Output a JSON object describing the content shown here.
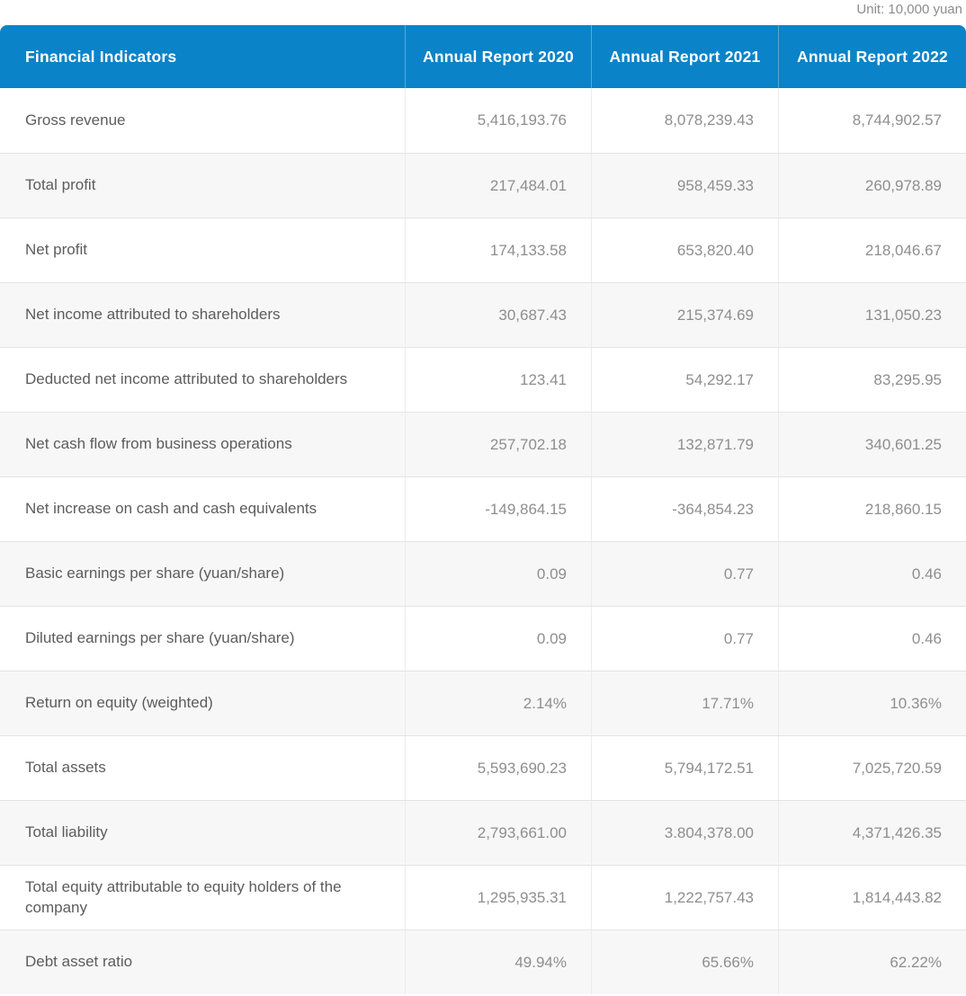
{
  "unit_label": "Unit: 10,000 yuan",
  "colors": {
    "header_bg": "#0a83c8",
    "header_text": "#ffffff",
    "header_divider": "#57a9d9",
    "row_alt_bg": "#f7f7f7",
    "label_text": "#5c5c5c",
    "value_text": "#8e8e8e",
    "unit_text": "#8c8c8c"
  },
  "chart_data": {
    "type": "table",
    "unit": "10,000 yuan",
    "columns": [
      "Financial Indicators",
      "Annual Report 2020",
      "Annual Report 2021",
      "Annual Report 2022"
    ],
    "rows": [
      {
        "label": "Gross revenue",
        "values": [
          "5,416,193.76",
          "8,078,239.43",
          "8,744,902.57"
        ]
      },
      {
        "label": "Total profit",
        "values": [
          "217,484.01",
          "958,459.33",
          "260,978.89"
        ]
      },
      {
        "label": "Net profit",
        "values": [
          "174,133.58",
          "653,820.40",
          "218,046.67"
        ]
      },
      {
        "label": "Net income attributed to shareholders",
        "values": [
          "30,687.43",
          "215,374.69",
          "131,050.23"
        ]
      },
      {
        "label": "Deducted net income attributed to shareholders",
        "values": [
          "123.41",
          "54,292.17",
          "83,295.95"
        ]
      },
      {
        "label": "Net cash flow from business operations",
        "values": [
          "257,702.18",
          "132,871.79",
          "340,601.25"
        ]
      },
      {
        "label": "Net increase on cash and cash equivalents",
        "values": [
          "-149,864.15",
          "-364,854.23",
          "218,860.15"
        ]
      },
      {
        "label": "Basic earnings per share (yuan/share)",
        "values": [
          "0.09",
          "0.77",
          "0.46"
        ]
      },
      {
        "label": "Diluted earnings per share (yuan/share)",
        "values": [
          "0.09",
          "0.77",
          "0.46"
        ]
      },
      {
        "label": "Return on equity (weighted)",
        "values": [
          "2.14%",
          "17.71%",
          "10.36%"
        ]
      },
      {
        "label": "Total assets",
        "values": [
          "5,593,690.23",
          "5,794,172.51",
          "7,025,720.59"
        ]
      },
      {
        "label": "Total liability",
        "values": [
          "2,793,661.00",
          "3.804,378.00",
          "4,371,426.35"
        ]
      },
      {
        "label": "Total equity attributable to equity holders of the company",
        "values": [
          "1,295,935.31",
          "1,222,757.43",
          "1,814,443.82"
        ]
      },
      {
        "label": "Debt asset ratio",
        "values": [
          "49.94%",
          "65.66%",
          "62.22%"
        ]
      }
    ]
  }
}
